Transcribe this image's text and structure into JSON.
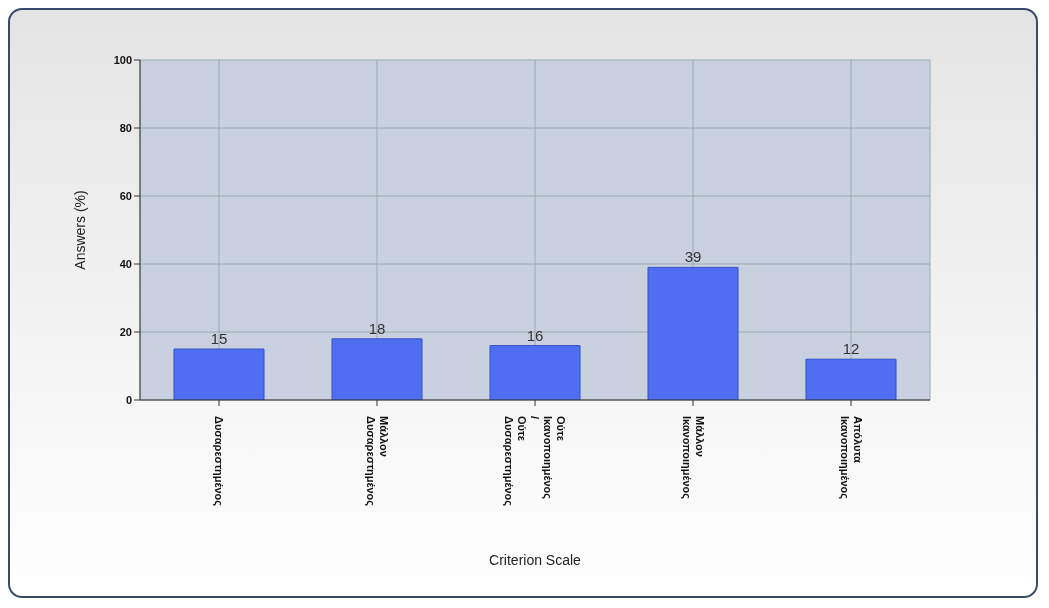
{
  "chart_data": {
    "type": "bar",
    "xlabel": "Criterion Scale",
    "ylabel": "Answers (%)",
    "categories": [
      "Δυσαρεστημένος",
      "Μάλλον Δυσαρεστημένος",
      "Ούτε Ικανοποιημένος / Ούτε Δυσαρεστημένος",
      "Μάλλον Ικανοποιημένος",
      "Απόλυτα Ικανοποιημένος"
    ],
    "values": [
      15,
      18,
      16,
      39,
      12
    ],
    "color": "#4f6ef0",
    "data_labels": true,
    "ylim": [
      0,
      100
    ],
    "yticks": [
      0,
      20,
      40,
      60,
      80,
      100
    ],
    "grid": true
  }
}
